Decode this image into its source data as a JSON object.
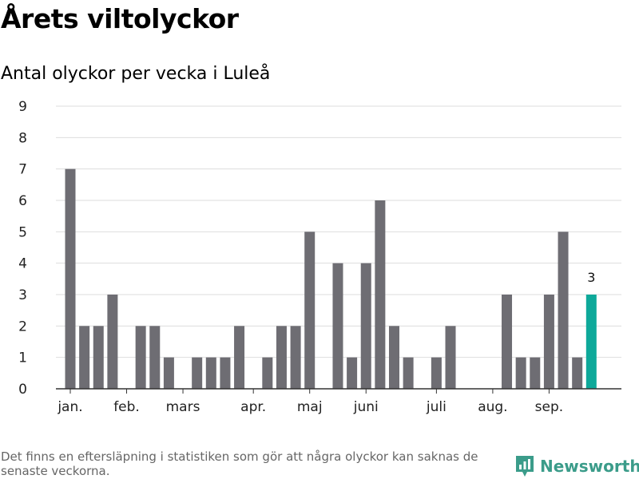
{
  "title": "Årets viltolyckor",
  "subtitle": "Antal olyckor per vecka i Luleå",
  "footnote": "Det finns en eftersläpning i statistiken som gör att några olyckor kan saknas de senaste veckorna.",
  "brand": {
    "name": "Newsworthy",
    "icon": "newsworthy-logo-icon",
    "color": "#3b9c8a"
  },
  "colors": {
    "bar": "#6e6d73",
    "highlight": "#0ea99a",
    "grid": "#dddddd",
    "axis": "#333333"
  },
  "chart_data": {
    "type": "bar",
    "title": "Antal olyckor per vecka i Luleå",
    "xlabel": "",
    "ylabel": "",
    "ylim": [
      0,
      9
    ],
    "yticks": [
      0,
      1,
      2,
      3,
      4,
      5,
      6,
      7,
      8,
      9
    ],
    "grid": true,
    "values": [
      7,
      2,
      2,
      3,
      0,
      2,
      2,
      1,
      0,
      1,
      1,
      1,
      2,
      0,
      1,
      2,
      2,
      5,
      0,
      4,
      1,
      4,
      6,
      2,
      1,
      0,
      1,
      2,
      0,
      0,
      0,
      3,
      1,
      1,
      3,
      5,
      1,
      3
    ],
    "highlight_index": 37,
    "highlight_label": "3",
    "month_labels": [
      {
        "label": "jan.",
        "at": 0
      },
      {
        "label": "feb.",
        "at": 4
      },
      {
        "label": "mars",
        "at": 8
      },
      {
        "label": "apr.",
        "at": 13
      },
      {
        "label": "maj",
        "at": 17
      },
      {
        "label": "juni",
        "at": 21
      },
      {
        "label": "juli",
        "at": 26
      },
      {
        "label": "aug.",
        "at": 30
      },
      {
        "label": "sep.",
        "at": 34
      }
    ]
  }
}
